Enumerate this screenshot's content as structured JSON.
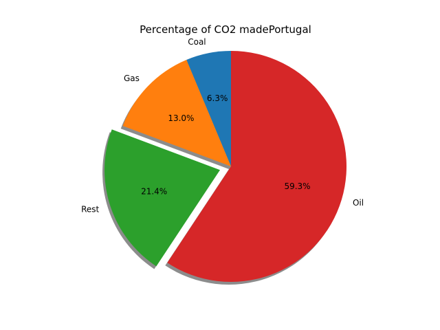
{
  "chart_data": {
    "type": "pie",
    "title": "Percentage of CO2 madePortugal",
    "start_angle_deg": 90,
    "direction": "counterclockwise",
    "shadow": true,
    "slices": [
      {
        "label": "Coal",
        "value": 6.3,
        "pct_text": "6.3%",
        "color": "#1f77b4",
        "exploded": false
      },
      {
        "label": "Gas",
        "value": 13.0,
        "pct_text": "13.0%",
        "color": "#ff7f0e",
        "exploded": false
      },
      {
        "label": "Rest",
        "value": 21.4,
        "pct_text": "21.4%",
        "color": "#2ca02c",
        "exploded": true
      },
      {
        "label": "Oil",
        "value": 59.3,
        "pct_text": "59.3%",
        "color": "#d62728",
        "exploded": false
      }
    ]
  }
}
